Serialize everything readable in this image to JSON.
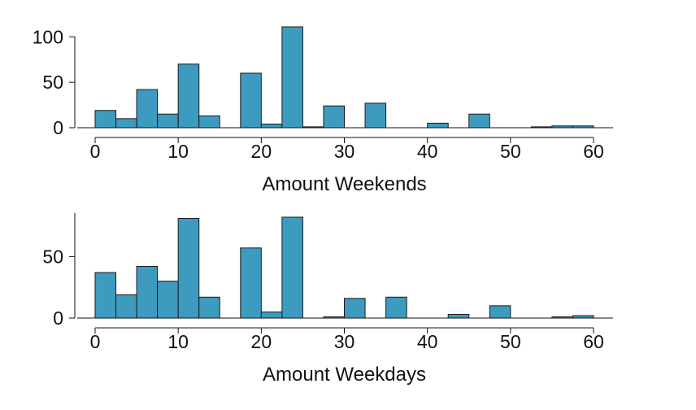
{
  "chart_data": [
    {
      "type": "bar",
      "title": "",
      "xlabel": "Amount Weekends",
      "ylabel": "",
      "bin_width": 2.5,
      "bin_starts": [
        0,
        2.5,
        5,
        7.5,
        10,
        12.5,
        15,
        17.5,
        20,
        22.5,
        25,
        27.5,
        30,
        32.5,
        35,
        37.5,
        40,
        42.5,
        45,
        47.5,
        50,
        52.5,
        55,
        57.5
      ],
      "values": [
        19,
        10,
        42,
        15,
        70,
        13,
        0,
        60,
        4,
        111,
        1,
        24,
        0,
        27,
        0,
        0,
        5,
        0,
        15,
        0,
        0,
        1,
        2,
        2
      ],
      "xlim": [
        0,
        60
      ],
      "ylim": [
        0,
        111
      ],
      "x_ticks": [
        0,
        10,
        20,
        30,
        40,
        50,
        60
      ],
      "y_ticks": [
        0,
        50,
        100
      ],
      "grid": false,
      "color": "#3E9BC0"
    },
    {
      "type": "bar",
      "title": "",
      "xlabel": "Amount Weekdays",
      "ylabel": "",
      "bin_width": 2.5,
      "bin_starts": [
        0,
        2.5,
        5,
        7.5,
        10,
        12.5,
        15,
        17.5,
        20,
        22.5,
        25,
        27.5,
        30,
        32.5,
        35,
        37.5,
        40,
        42.5,
        45,
        47.5,
        50,
        52.5,
        55,
        57.5
      ],
      "values": [
        37,
        19,
        42,
        30,
        81,
        17,
        0,
        57,
        5,
        82,
        0,
        1,
        16,
        0,
        17,
        0,
        0,
        3,
        0,
        10,
        0,
        0,
        1,
        2
      ],
      "xlim": [
        0,
        60
      ],
      "ylim": [
        0,
        82
      ],
      "x_ticks": [
        0,
        10,
        20,
        30,
        40,
        50,
        60
      ],
      "y_ticks": [
        0,
        50
      ],
      "grid": false,
      "color": "#3E9BC0"
    }
  ]
}
